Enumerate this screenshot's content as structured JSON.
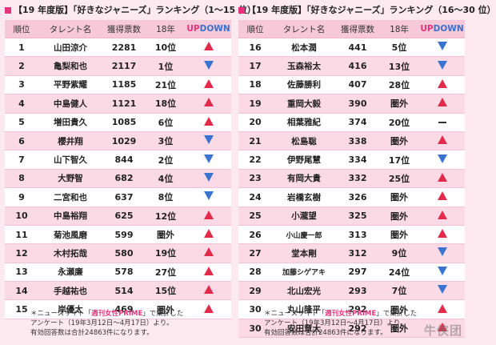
{
  "colors": {
    "accent": "#e8327b",
    "up": "#e22a4a",
    "down": "#3a73d0",
    "header_bg": "#f7c8d8",
    "row_alt": "#fbd9e5"
  },
  "left": {
    "title": "【19 年度版】「好きなジャニーズ」ランキング（1～15 位）",
    "headers": {
      "rank": "順位",
      "talent": "タレント名",
      "votes": "獲得票数",
      "prev": "18年",
      "up": "UP",
      "down": "DOWN"
    },
    "rows": [
      {
        "rank": "1",
        "name": "山田涼介",
        "votes": "2281",
        "prev": "10位",
        "trend": "up"
      },
      {
        "rank": "2",
        "name": "亀梨和也",
        "votes": "2117",
        "prev": "1位",
        "trend": "down"
      },
      {
        "rank": "3",
        "name": "平野紫耀",
        "votes": "1185",
        "prev": "21位",
        "trend": "up"
      },
      {
        "rank": "4",
        "name": "中島健人",
        "votes": "1121",
        "prev": "18位",
        "trend": "up"
      },
      {
        "rank": "5",
        "name": "増田貴久",
        "votes": "1085",
        "prev": "6位",
        "trend": "up"
      },
      {
        "rank": "6",
        "name": "櫻井翔",
        "votes": "1029",
        "prev": "3位",
        "trend": "down"
      },
      {
        "rank": "7",
        "name": "山下智久",
        "votes": "844",
        "prev": "2位",
        "trend": "down"
      },
      {
        "rank": "8",
        "name": "大野智",
        "votes": "682",
        "prev": "4位",
        "trend": "down"
      },
      {
        "rank": "9",
        "name": "二宮和也",
        "votes": "637",
        "prev": "8位",
        "trend": "down"
      },
      {
        "rank": "10",
        "name": "中島裕翔",
        "votes": "625",
        "prev": "12位",
        "trend": "up"
      },
      {
        "rank": "11",
        "name": "菊池風磨",
        "votes": "599",
        "prev": "圏外",
        "trend": "up"
      },
      {
        "rank": "12",
        "name": "木村拓哉",
        "votes": "580",
        "prev": "19位",
        "trend": "up"
      },
      {
        "rank": "13",
        "name": "永瀬廉",
        "votes": "578",
        "prev": "27位",
        "trend": "up"
      },
      {
        "rank": "14",
        "name": "手越祐也",
        "votes": "514",
        "prev": "15位",
        "trend": "up"
      },
      {
        "rank": "15",
        "name": "岸優太",
        "votes": "469",
        "prev": "圏外",
        "trend": "up"
      }
    ],
    "note": {
      "prefix": "＊ニュースサイト「",
      "highlight": "週刊女性PRIME",
      "suffix": "」で集計した",
      "line2": "アンケート（19年3月12日～4月17日）より。",
      "line3": "有効回答数は合計24863件になります。"
    }
  },
  "right": {
    "title": "【19 年度版】「好きなジャニーズ」ランキング（16～30 位）",
    "headers": {
      "rank": "順位",
      "talent": "タレント名",
      "votes": "獲得票数",
      "prev": "18年",
      "up": "UP",
      "down": "DOWN"
    },
    "rows": [
      {
        "rank": "16",
        "name": "松本潤",
        "votes": "441",
        "prev": "5位",
        "trend": "down"
      },
      {
        "rank": "17",
        "name": "玉森裕太",
        "votes": "416",
        "prev": "13位",
        "trend": "down"
      },
      {
        "rank": "18",
        "name": "佐藤勝利",
        "votes": "407",
        "prev": "28位",
        "trend": "up"
      },
      {
        "rank": "19",
        "name": "重岡大毅",
        "votes": "390",
        "prev": "圏外",
        "trend": "up"
      },
      {
        "rank": "20",
        "name": "相葉雅紀",
        "votes": "374",
        "prev": "20位",
        "trend": "same"
      },
      {
        "rank": "21",
        "name": "松島聡",
        "votes": "338",
        "prev": "圏外",
        "trend": "up"
      },
      {
        "rank": "22",
        "name": "伊野尾慧",
        "votes": "334",
        "prev": "17位",
        "trend": "down"
      },
      {
        "rank": "23",
        "name": "有岡大貴",
        "votes": "332",
        "prev": "25位",
        "trend": "up"
      },
      {
        "rank": "24",
        "name": "岩橋玄樹",
        "votes": "326",
        "prev": "圏外",
        "trend": "up"
      },
      {
        "rank": "25",
        "name": "小瀧望",
        "votes": "325",
        "prev": "圏外",
        "trend": "up"
      },
      {
        "rank": "26",
        "name": "小山慶一郎",
        "votes": "313",
        "prev": "圏外",
        "trend": "up"
      },
      {
        "rank": "27",
        "name": "堂本剛",
        "votes": "312",
        "prev": "9位",
        "trend": "down"
      },
      {
        "rank": "28",
        "name": "加藤シゲアキ",
        "votes": "297",
        "prev": "24位",
        "trend": "down"
      },
      {
        "rank": "29",
        "name": "北山宏光",
        "votes": "293",
        "prev": "7位",
        "trend": "down"
      },
      {
        "rank": "30",
        "name": "丸山隆平",
        "votes": "292",
        "prev": "圏外",
        "trend": "up"
      },
      {
        "rank": "30",
        "name": "安田章大",
        "votes": "292",
        "prev": "圏外",
        "trend": "up"
      }
    ],
    "note": {
      "prefix": "＊ニュースサイト「",
      "highlight": "週刊女性PRIME",
      "suffix": "」で集計した",
      "line2": "アンケート（19年3月12日～4月17日）より。",
      "line3": "有効回答数は合計24863件になります。"
    }
  },
  "watermark": "牛侠团"
}
